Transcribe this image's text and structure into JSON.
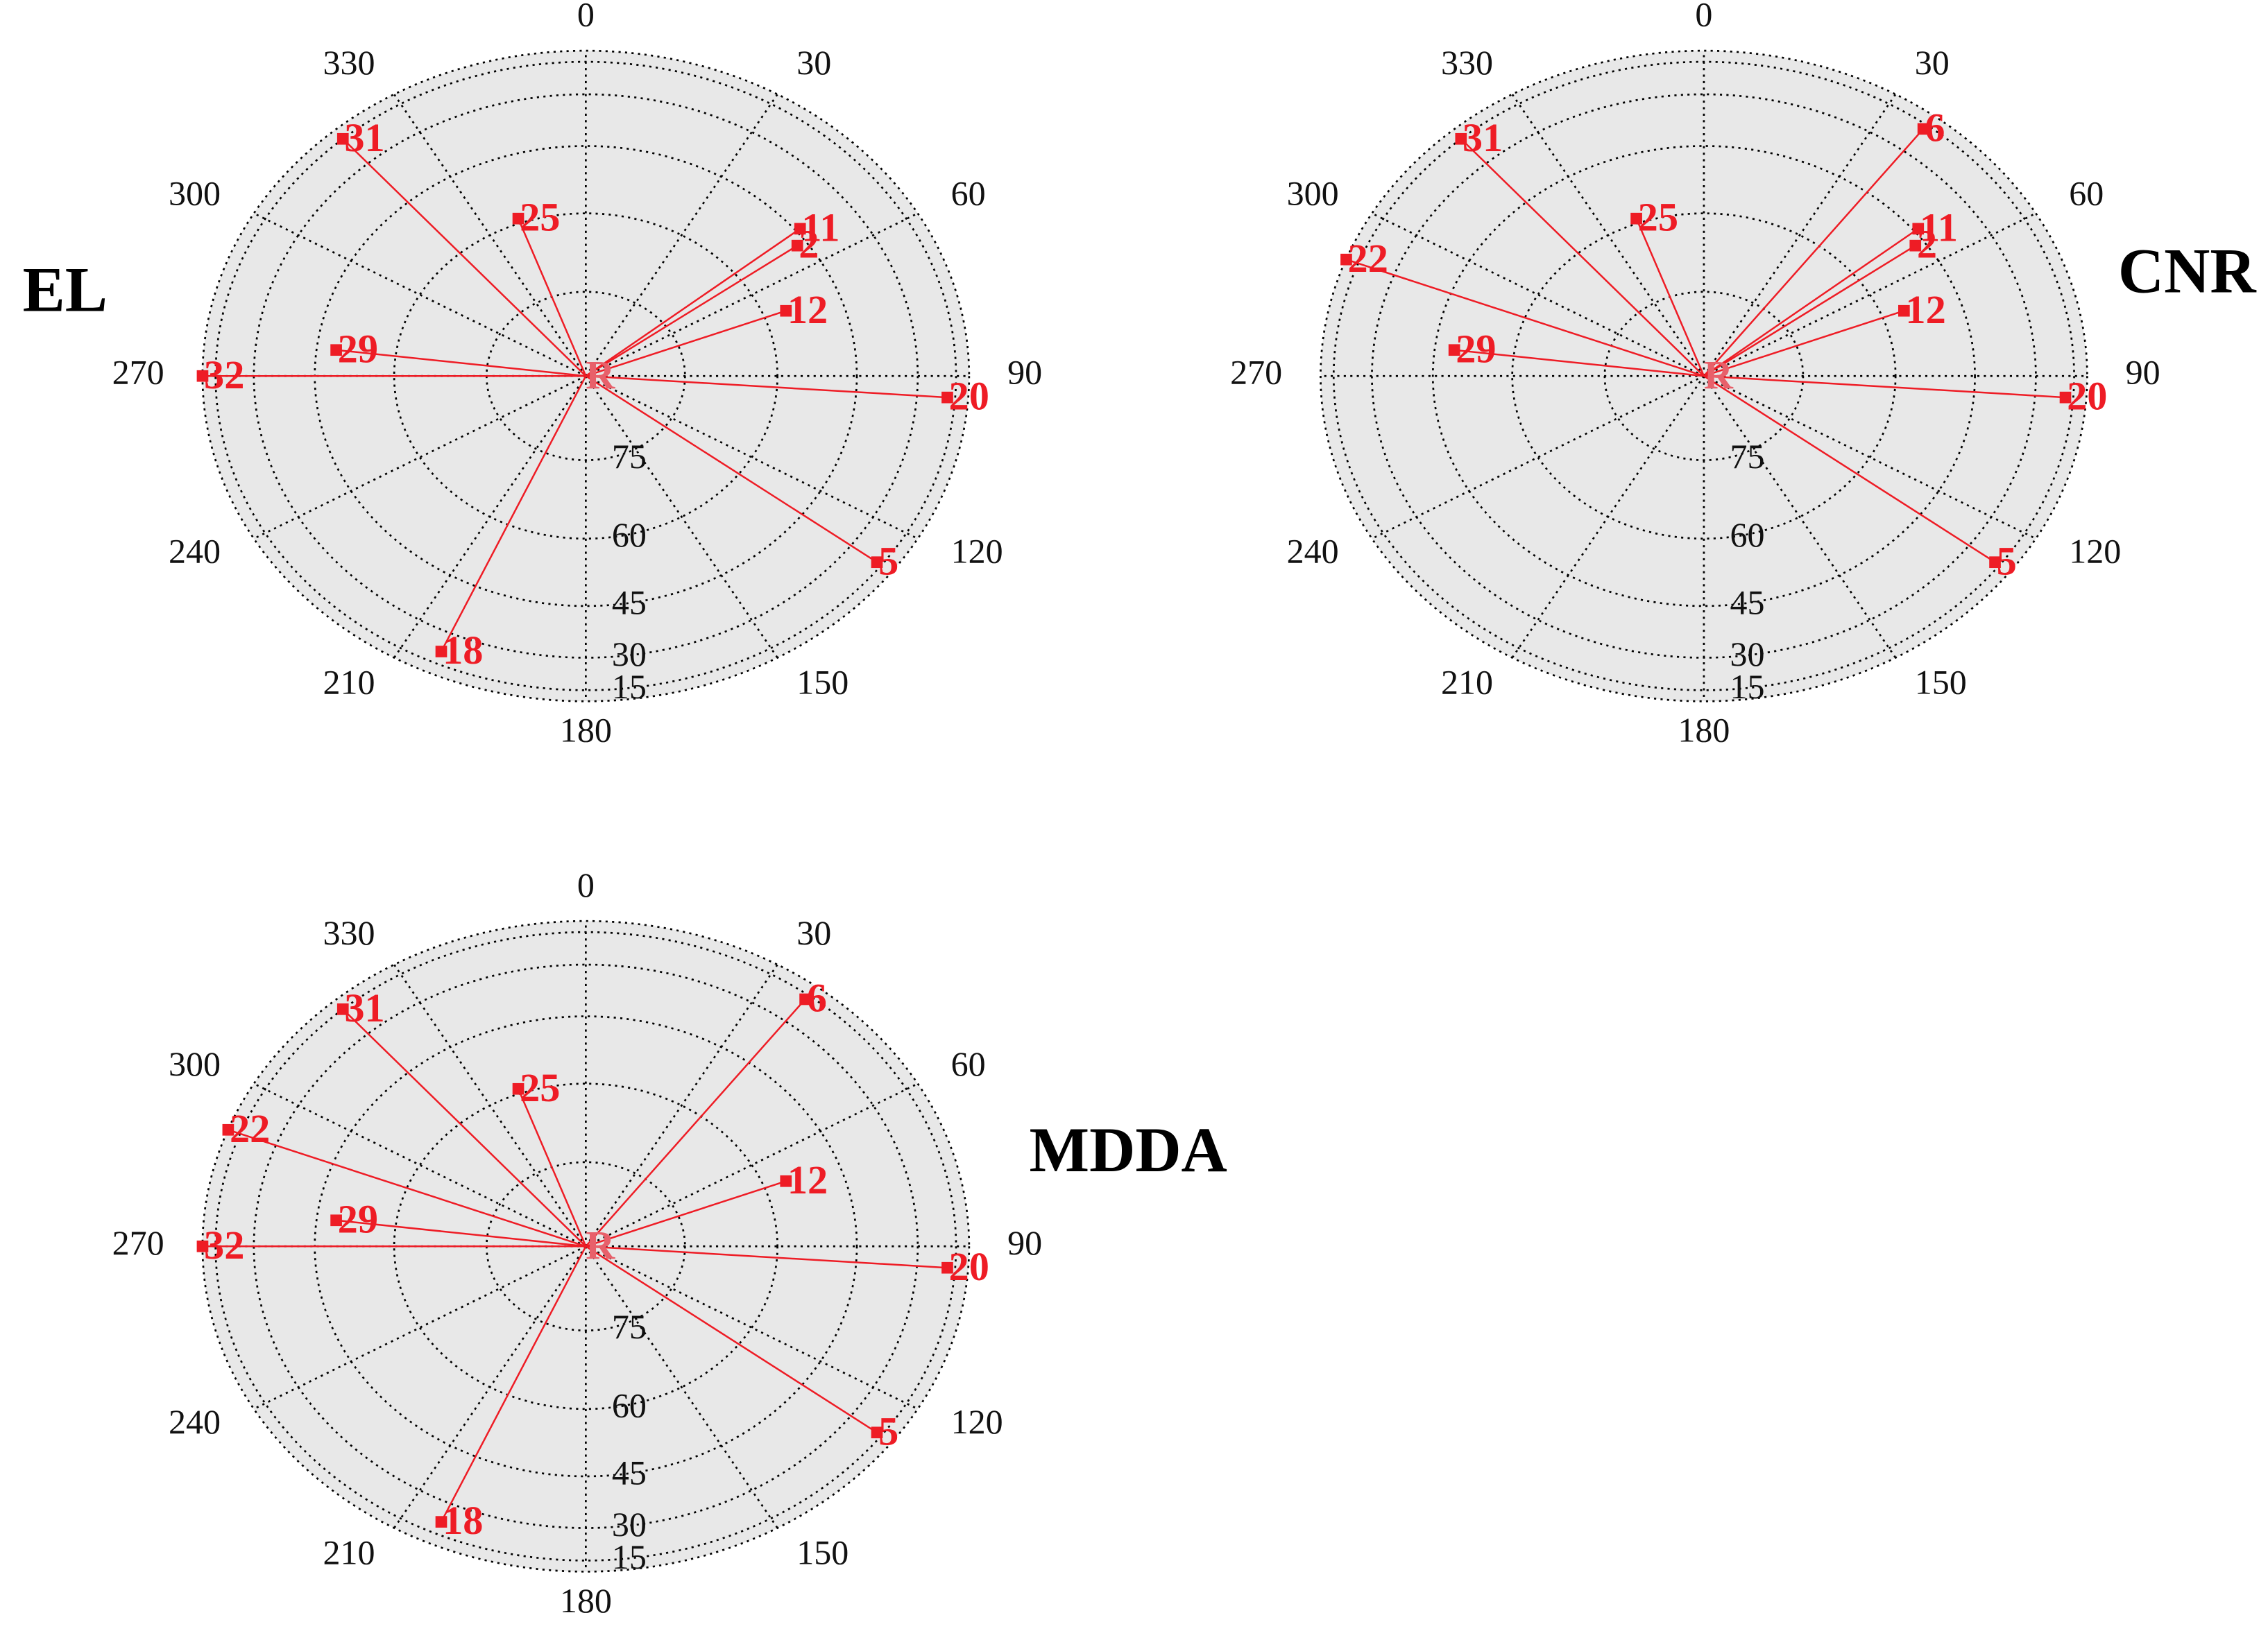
{
  "chart_data": [
    {
      "type": "skyplot",
      "title": "EL",
      "center_label": "R",
      "categories": [
        "31",
        "25",
        "2",
        "11",
        "12",
        "20",
        "5",
        "18",
        "29",
        "32"
      ],
      "azimuth": [
        319,
        340,
        54,
        51,
        69,
        94,
        127,
        204,
        277,
        270
      ],
      "values": [
        15,
        59,
        47,
        44,
        56,
        19,
        18,
        22,
        49,
        1
      ],
      "thetaticks": [
        0,
        30,
        60,
        90,
        120,
        150,
        180,
        210,
        240,
        270,
        300,
        330
      ],
      "rlim": [
        0,
        90
      ],
      "rticks": [
        15,
        30,
        45,
        60,
        75
      ],
      "color": "#ee1c25",
      "background": "#e8e8e8",
      "grid": true
    },
    {
      "type": "skyplot",
      "title": "CNR",
      "center_label": "R",
      "categories": [
        "6",
        "31",
        "22",
        "25",
        "2",
        "11",
        "12",
        "20",
        "5",
        "29"
      ],
      "azimuth": [
        37,
        319,
        291,
        340,
        54,
        51,
        69,
        94,
        127,
        277
      ],
      "values": [
        18,
        15,
        2,
        59,
        47,
        44,
        56,
        19,
        18,
        49
      ],
      "thetaticks": [
        0,
        30,
        60,
        90,
        120,
        150,
        180,
        210,
        240,
        270,
        300,
        330
      ],
      "rlim": [
        0,
        90
      ],
      "rticks": [
        15,
        30,
        45,
        60,
        75
      ],
      "color": "#ee1c25",
      "background": "#e8e8e8",
      "grid": true
    },
    {
      "type": "skyplot",
      "title": "MDDA",
      "center_label": "R",
      "categories": [
        "31",
        "6",
        "25",
        "22",
        "12",
        "20",
        "5",
        "18",
        "29",
        "32"
      ],
      "azimuth": [
        319,
        37,
        340,
        291,
        69,
        94,
        127,
        204,
        277,
        270
      ],
      "values": [
        15,
        18,
        59,
        2,
        56,
        19,
        18,
        22,
        49,
        1
      ],
      "thetaticks": [
        0,
        30,
        60,
        90,
        120,
        150,
        180,
        210,
        240,
        270,
        300,
        330
      ],
      "rlim": [
        0,
        90
      ],
      "rticks": [
        15,
        30,
        45,
        60,
        75
      ],
      "color": "#ee1c25",
      "background": "#e8e8e8",
      "grid": true
    }
  ]
}
